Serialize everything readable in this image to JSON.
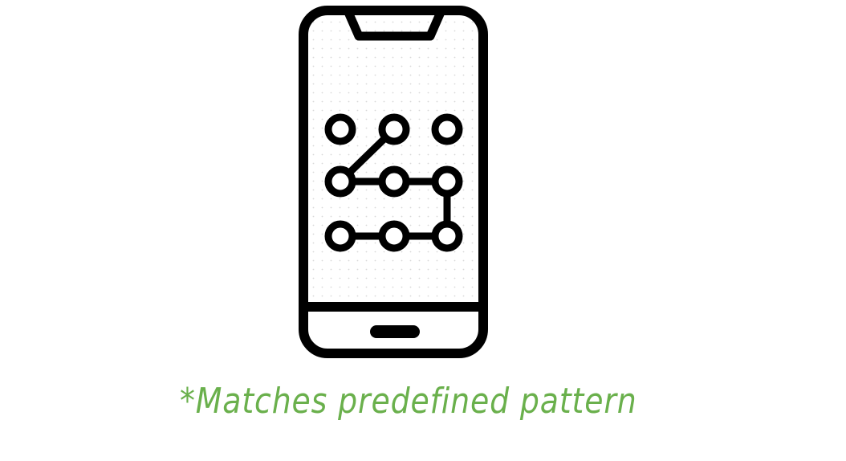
{
  "illustration": {
    "icon": "smartphone-pattern-lock-icon",
    "stroke_color": "#000000",
    "screen_dot_color": "#d8d8d8",
    "lock_pattern": {
      "grid": "3x3",
      "path": [
        2,
        4,
        5,
        6,
        9,
        8,
        7
      ]
    }
  },
  "caption": {
    "text": "*Matches predefined pattern",
    "color": "#6ab04c"
  }
}
